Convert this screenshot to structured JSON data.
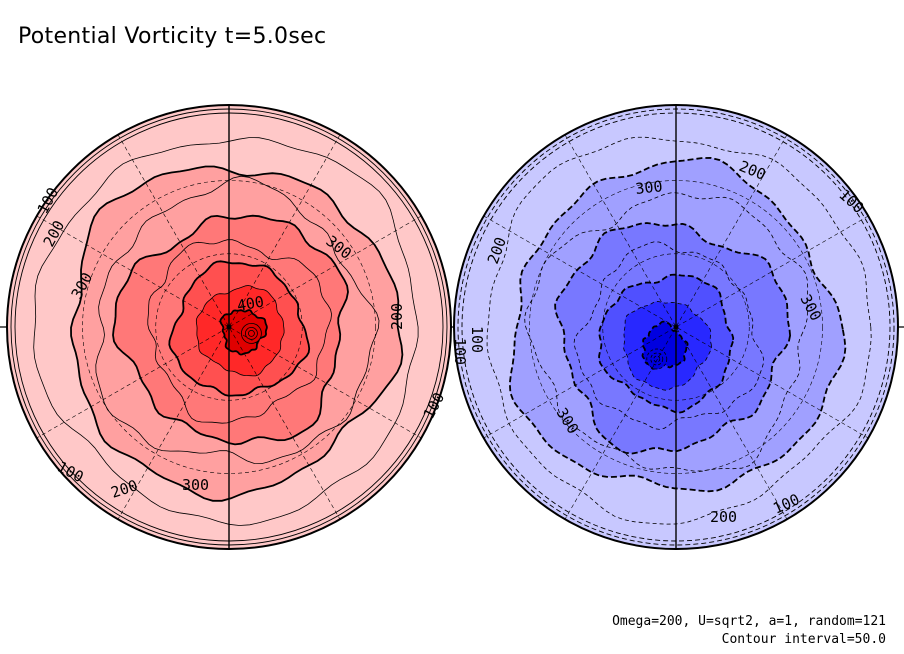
{
  "title": "Potential Vorticity t=5.0sec",
  "footer": {
    "params": "Omega=200, U=sqrt2, a=1, random=121",
    "interval": "Contour interval=50.0"
  },
  "colors": {
    "north_fill": [
      "#ffc8c8",
      "#ffa0a0",
      "#ff7878",
      "#ff5050",
      "#ff2828",
      "#e00000"
    ],
    "south_fill": [
      "#c8c8ff",
      "#a0a0ff",
      "#7878ff",
      "#5050ff",
      "#2828ff",
      "#0000e0"
    ],
    "line": "#000000"
  },
  "chart_data": [
    {
      "type": "heatmap",
      "projection": "polar-stereographic",
      "hemisphere": "north",
      "contour_interval": 50.0,
      "contour_levels": [
        50,
        100,
        150,
        200,
        250,
        300,
        350,
        400
      ],
      "contour_labels": [
        "100",
        "200",
        "300",
        "300",
        "200",
        "100",
        "100",
        "200",
        "300",
        "400"
      ],
      "value_range": [
        0,
        450
      ],
      "max_at_pole_offset": true,
      "grid": true
    },
    {
      "type": "heatmap",
      "projection": "polar-stereographic",
      "hemisphere": "south",
      "contour_interval": 50.0,
      "contour_levels": [
        -50,
        -100,
        -150,
        -200,
        -250,
        -300,
        -350,
        -400
      ],
      "contour_labels": [
        "200",
        "100",
        "300",
        "200",
        "300",
        "100",
        "100",
        "300",
        "200",
        "100"
      ],
      "value_range": [
        -450,
        0
      ],
      "negative_dashed": true,
      "grid": true
    }
  ]
}
